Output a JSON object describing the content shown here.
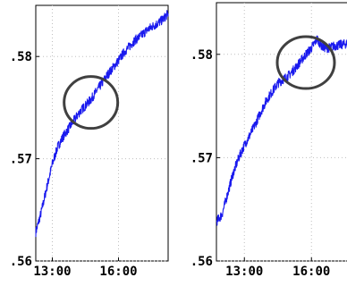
{
  "chart_data": [
    {
      "type": "line",
      "title": "",
      "xlabel": "",
      "ylabel": "",
      "xlim": [
        "12:15",
        "18:15"
      ],
      "ylim": [
        0.56,
        0.585
      ],
      "x_ticks": [
        {
          "value": "13:00",
          "label": "13:00"
        },
        {
          "value": "16:00",
          "label": "16:00"
        }
      ],
      "y_ticks": [
        {
          "value": 0.56,
          "label": ".56"
        },
        {
          "value": 0.57,
          "label": ".57"
        },
        {
          "value": 0.58,
          "label": ".58"
        }
      ],
      "grid": true,
      "series": [
        {
          "x": [
            "12:15",
            "12:30",
            "12:45",
            "13:00",
            "13:15",
            "13:30",
            "13:45",
            "14:00",
            "14:15",
            "14:30",
            "14:45",
            "15:00",
            "15:15",
            "15:30",
            "15:45",
            "16:00",
            "16:15",
            "16:30",
            "16:45",
            "17:00",
            "17:15",
            "17:30",
            "17:45",
            "18:00",
            "18:15"
          ],
          "values": [
            0.5628,
            0.5648,
            0.5672,
            0.5695,
            0.5712,
            0.5722,
            0.573,
            0.5738,
            0.5746,
            0.5752,
            0.5758,
            0.5766,
            0.5774,
            0.5782,
            0.5789,
            0.5796,
            0.5804,
            0.581,
            0.5816,
            0.582,
            0.5825,
            0.5829,
            0.5832,
            0.5836,
            0.5842
          ]
        }
      ],
      "annotations": [
        {
          "shape": "circle",
          "color": "#404040",
          "x": "14:45",
          "y": 0.5755
        }
      ]
    },
    {
      "type": "line",
      "title": "",
      "xlabel": "",
      "ylabel": "",
      "xlim": [
        "11:45",
        "17:45"
      ],
      "ylim": [
        0.56,
        0.585
      ],
      "x_ticks": [
        {
          "value": "13:00",
          "label": "13:00"
        },
        {
          "value": "16:00",
          "label": "16:00"
        }
      ],
      "y_ticks": [
        {
          "value": 0.56,
          "label": ".56"
        },
        {
          "value": 0.57,
          "label": ".57"
        },
        {
          "value": 0.58,
          "label": ".58"
        }
      ],
      "grid": true,
      "series": [
        {
          "x": [
            "11:45",
            "12:00",
            "12:15",
            "12:30",
            "12:45",
            "13:00",
            "13:15",
            "13:30",
            "13:45",
            "14:00",
            "14:15",
            "14:30",
            "14:45",
            "15:00",
            "15:15",
            "15:30",
            "15:45",
            "16:00",
            "16:15",
            "16:30",
            "16:45",
            "17:00",
            "17:15",
            "17:30",
            "17:45"
          ],
          "values": [
            0.5638,
            0.5645,
            0.5665,
            0.5685,
            0.57,
            0.5712,
            0.5722,
            0.5733,
            0.5745,
            0.5756,
            0.5764,
            0.5772,
            0.5776,
            0.578,
            0.5786,
            0.5793,
            0.58,
            0.5806,
            0.5815,
            0.5807,
            0.5806,
            0.5808,
            0.5809,
            0.581,
            0.5811
          ]
        }
      ],
      "annotations": [
        {
          "shape": "circle",
          "color": "#404040",
          "x": "15:45",
          "y": 0.5792
        }
      ]
    }
  ]
}
